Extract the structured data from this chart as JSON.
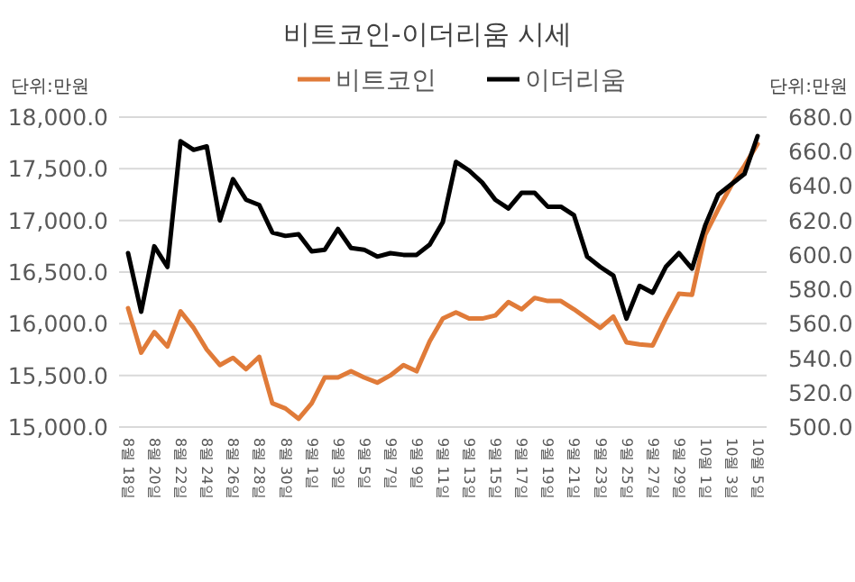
{
  "chart_data": {
    "type": "line",
    "title": "비트코인-이더리움 시세",
    "ylabel": "단위:만원",
    "y2label": "단위:만원",
    "categories": [
      "8월 18일",
      null,
      "8월 20일",
      null,
      "8월 22일",
      null,
      "8월 24일",
      null,
      "8월 26일",
      null,
      "8월 28일",
      null,
      "8월 30일",
      null,
      "9월 1일",
      null,
      "9월 3일",
      null,
      "9월 5일",
      null,
      "9월 7일",
      null,
      "9월 9일",
      null,
      "9월 11일",
      null,
      "9월 13일",
      null,
      "9월 15일",
      null,
      "9월 17일",
      null,
      "9월 19일",
      null,
      "9월 21일",
      null,
      "9월 23일",
      null,
      "9월 25일",
      null,
      "9월 27일",
      null,
      "9월 29일",
      null,
      "10월 1일",
      null,
      "10월 3일",
      null,
      "10월 5일"
    ],
    "series": [
      {
        "name": "비트코인",
        "color": "#e07b39",
        "values": [
          16150,
          15720,
          15920,
          15780,
          16120,
          15960,
          15750,
          15600,
          15670,
          15560,
          15680,
          15230,
          15180,
          15080,
          15230,
          15480,
          15480,
          15540,
          15480,
          15430,
          15500,
          15600,
          15540,
          15830,
          16050,
          16110,
          16050,
          16050,
          16080,
          16210,
          16140,
          16250,
          16220,
          16220,
          16140,
          16050,
          15960,
          16070,
          15820,
          15800,
          15790,
          16050,
          16290,
          16280,
          16860,
          17110,
          17340,
          17530,
          17740
        ]
      },
      {
        "name": "이더리움",
        "color": "#000000",
        "axis": "y2",
        "values": [
          601,
          567,
          605,
          593,
          666,
          661,
          663,
          620,
          644,
          632,
          629,
          613,
          611,
          612,
          602,
          603,
          615,
          604,
          603,
          599,
          601,
          600,
          600,
          606,
          619,
          654,
          649,
          642,
          632,
          627,
          636,
          636,
          628,
          628,
          623,
          599,
          593,
          588,
          563,
          582,
          578,
          593,
          601,
          592,
          617,
          635,
          641,
          647,
          669
        ]
      }
    ],
    "ylim": [
      15000,
      18000
    ],
    "yticks": [
      {
        "value": 15000,
        "label": "15,000.0"
      },
      {
        "value": 15500,
        "label": "15,500.0"
      },
      {
        "value": 16000,
        "label": "16,000.0"
      },
      {
        "value": 16500,
        "label": "16,500.0"
      },
      {
        "value": 17000,
        "label": "17,000.0"
      },
      {
        "value": 17500,
        "label": "17,500.0"
      },
      {
        "value": 18000,
        "label": "18,000.0"
      }
    ],
    "y2lim": [
      500,
      680
    ],
    "y2ticks": [
      {
        "value": 500,
        "label": "500.0"
      },
      {
        "value": 520,
        "label": "520.0"
      },
      {
        "value": 540,
        "label": "540.0"
      },
      {
        "value": 560,
        "label": "560.0"
      },
      {
        "value": 580,
        "label": "580.0"
      },
      {
        "value": 600,
        "label": "600.0"
      },
      {
        "value": 620,
        "label": "620.0"
      },
      {
        "value": 640,
        "label": "640.0"
      },
      {
        "value": 660,
        "label": "660.0"
      },
      {
        "value": 680,
        "label": "680.0"
      }
    ],
    "grid": "y",
    "legend": "top",
    "marker": "none",
    "line_style": "solid"
  }
}
